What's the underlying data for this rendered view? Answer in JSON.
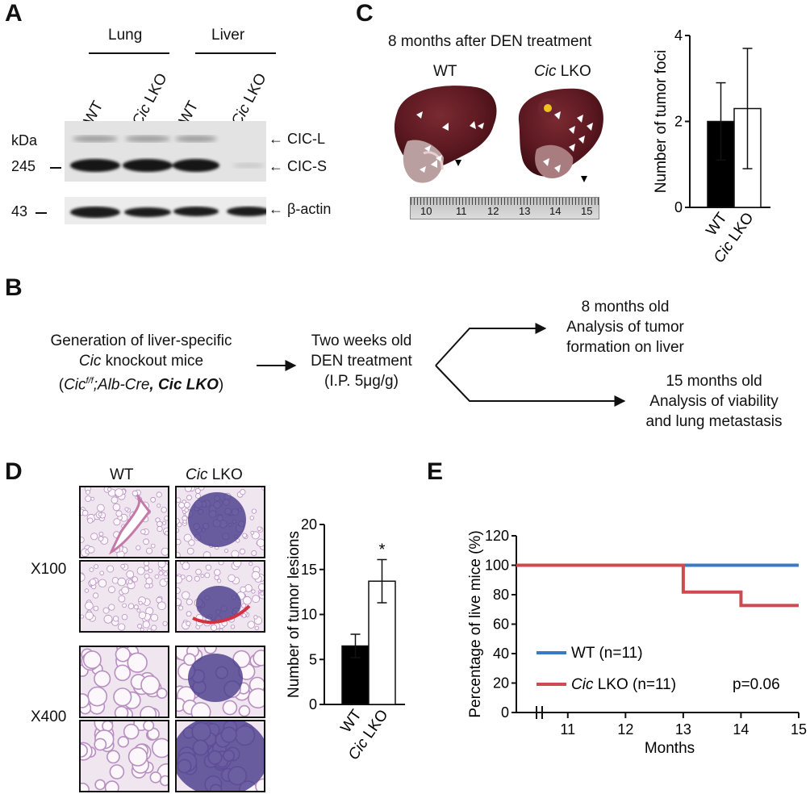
{
  "panels": {
    "a": "A",
    "b": "B",
    "c": "C",
    "d": "D",
    "e": "E"
  },
  "panel_a": {
    "tissue_lung": "Lung",
    "tissue_liver": "Liver",
    "lanes": [
      {
        "genotype": "WT",
        "italic_part": "",
        "rest": "WT"
      },
      {
        "genotype": "Cic LKO",
        "italic_part": "Cic",
        "rest": " LKO"
      },
      {
        "genotype": "WT",
        "italic_part": "",
        "rest": "WT"
      },
      {
        "genotype": "Cic LKO",
        "italic_part": "Cic",
        "rest": " LKO"
      }
    ],
    "kda": "kDa",
    "marker_245": "245",
    "marker_43": "43",
    "band_cicl": "CIC-L",
    "band_cics": "CIC-S",
    "band_actin": "β-actin"
  },
  "panel_c": {
    "title": "8 months after DEN treatment",
    "wt_label": "WT",
    "lko_italic": "Cic",
    "lko_rest": " LKO",
    "ruler_labels": [
      "10",
      "11",
      "12",
      "13",
      "14",
      "15"
    ],
    "chart_data": {
      "type": "bar",
      "categories": [
        "WT",
        "Cic LKO"
      ],
      "values": [
        2.0,
        2.3
      ],
      "errors": [
        0.9,
        1.4
      ],
      "ylabel": "Number of tumor foci",
      "ylim": [
        0,
        4
      ],
      "yticks": [
        "0",
        "2",
        "4"
      ],
      "colors": [
        "#000000",
        "#ffffff"
      ]
    }
  },
  "panel_b": {
    "step1_line1": "Generation of liver-specific",
    "step1_line2_italic": "Cic",
    "step1_line2_rest": " knockout mice",
    "step1_line3_open": "(",
    "step1_line3_cic": "Cic",
    "step1_line3_sup": "f/f",
    "step1_line3_alb": ";Alb-Cre",
    "step1_line3_comma": ", ",
    "step1_line3_bold_italic": "Cic",
    "step1_line3_bold": " LKO",
    "step1_line3_close": ")",
    "step2_line1": "Two weeks old",
    "step2_line2": "DEN treatment",
    "step2_line3": "(I.P. 5μg/g)",
    "out1_line1": "8 months old",
    "out1_line2": "Analysis of tumor",
    "out1_line3": "formation on liver",
    "out2_line1": "15 months old",
    "out2_line2": "Analysis of viability",
    "out2_line3": "and lung metastasis"
  },
  "panel_d": {
    "col_wt": "WT",
    "col_lko_italic": "Cic",
    "col_lko_rest": " LKO",
    "mag_100": "X100",
    "mag_400": "X400",
    "sig": "*",
    "chart_data": {
      "type": "bar",
      "categories": [
        "WT",
        "Cic LKO"
      ],
      "values": [
        6.5,
        13.7
      ],
      "errors": [
        1.3,
        2.4
      ],
      "ylabel": "Number of tumor lesions",
      "ylim": [
        0,
        20
      ],
      "yticks": [
        "0",
        "5",
        "10",
        "15",
        "20"
      ],
      "colors": [
        "#000000",
        "#ffffff"
      ]
    }
  },
  "panel_e": {
    "chart_data": {
      "type": "line",
      "xlabel": "Months",
      "ylabel": "Percentage of live mice (%)",
      "ylim": [
        0,
        120
      ],
      "yticks": [
        "0",
        "20",
        "40",
        "60",
        "80",
        "100",
        "120"
      ],
      "xticks": [
        "11",
        "12",
        "13",
        "14",
        "15"
      ],
      "xlim": [
        10,
        15
      ],
      "series": [
        {
          "name": "WT (n=11)",
          "color": "#3c78c3",
          "points": [
            [
              10,
              100
            ],
            [
              15,
              100
            ]
          ]
        },
        {
          "name": "Cic LKO (n=11)",
          "color": "#cc4a50",
          "points": [
            [
              10,
              100
            ],
            [
              13,
              100
            ],
            [
              13,
              81.8
            ],
            [
              14,
              81.8
            ],
            [
              14,
              72.7
            ],
            [
              15,
              72.7
            ]
          ]
        }
      ],
      "legend": [
        "WT (n=11)",
        "Cic LKO (n=11)"
      ],
      "legend_italic": "Cic",
      "legend_lko_rest": " LKO (n=11)",
      "legend_wt": "WT (n=11)",
      "annotation": "p=0.06"
    }
  }
}
